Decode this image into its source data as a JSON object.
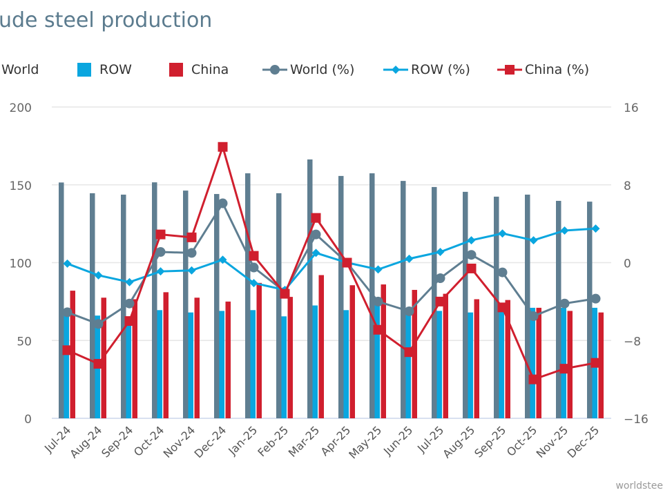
{
  "title": "ude steel production",
  "footer": "worldstee",
  "colors": {
    "World": "#5f7e91",
    "ROW": "#0aa6df",
    "China": "#d01f2e"
  },
  "chart_data": {
    "type": "bar+line",
    "title": "ude steel production",
    "categories": [
      "Jul-24",
      "Aug-24",
      "Sep-24",
      "Oct-24",
      "Nov-24",
      "Dec-24",
      "Jan-25",
      "Feb-25",
      "Mar-25",
      "Apr-25",
      "May-25",
      "Jun-25",
      "Jul-25",
      "Aug-25",
      "Sep-25",
      "Oct-25",
      "Nov-25",
      "Dec-25"
    ],
    "left_axis": {
      "range": [
        0,
        200
      ],
      "ticks": [
        "0",
        "50",
        "100",
        "150",
        "200"
      ]
    },
    "right_axis": {
      "range": [
        -16,
        16
      ],
      "ticks": [
        "−16",
        "−8",
        "0",
        "8",
        "16"
      ]
    },
    "grid": true,
    "legend_position": "top",
    "series": [
      {
        "name": "World",
        "type": "bar",
        "axis": "left",
        "values": [
          151.5,
          144.6,
          143.7,
          151.6,
          146.3,
          144.1,
          157.4,
          144.6,
          166.3,
          155.7,
          157.4,
          152.5,
          148.6,
          145.5,
          142.4,
          143.7,
          139.7,
          139.2
        ]
      },
      {
        "name": "ROW",
        "type": "bar",
        "axis": "left",
        "values": [
          68,
          66,
          65,
          69.5,
          68,
          69,
          69.5,
          65.5,
          72.5,
          69.5,
          73,
          70,
          69,
          68,
          72,
          71,
          71,
          71
        ]
      },
      {
        "name": "China",
        "type": "bar",
        "axis": "left",
        "values": [
          82,
          77.5,
          76.5,
          81,
          77.5,
          75,
          87,
          78,
          92,
          85.5,
          86,
          82.5,
          80,
          76.5,
          76,
          71,
          69,
          68
        ]
      },
      {
        "name": "World (%)",
        "type": "line",
        "marker": "circle",
        "axis": "right",
        "values": [
          -5.1,
          -6.3,
          -4.2,
          1.1,
          1.0,
          6.1,
          -0.5,
          -3.0,
          2.9,
          0,
          -4.0,
          -5.0,
          -1.6,
          0.8,
          -1.0,
          -5.5,
          -4.2,
          -3.7
        ]
      },
      {
        "name": "ROW (%)",
        "type": "line",
        "marker": "diamond",
        "axis": "right",
        "values": [
          -0.1,
          -1.3,
          -2.0,
          -0.9,
          -0.8,
          0.3,
          -2.1,
          -2.8,
          1.0,
          0,
          -0.7,
          0.4,
          1.1,
          2.3,
          3.0,
          2.3,
          3.3,
          3.5
        ]
      },
      {
        "name": "China (%)",
        "type": "line",
        "marker": "square",
        "axis": "right",
        "values": [
          -9.0,
          -10.4,
          -6.0,
          2.9,
          2.6,
          11.9,
          0.7,
          -3.2,
          4.6,
          0,
          -6.9,
          -9.2,
          -4.0,
          -0.6,
          -4.6,
          -12.0,
          -10.9,
          -10.3
        ]
      }
    ]
  }
}
